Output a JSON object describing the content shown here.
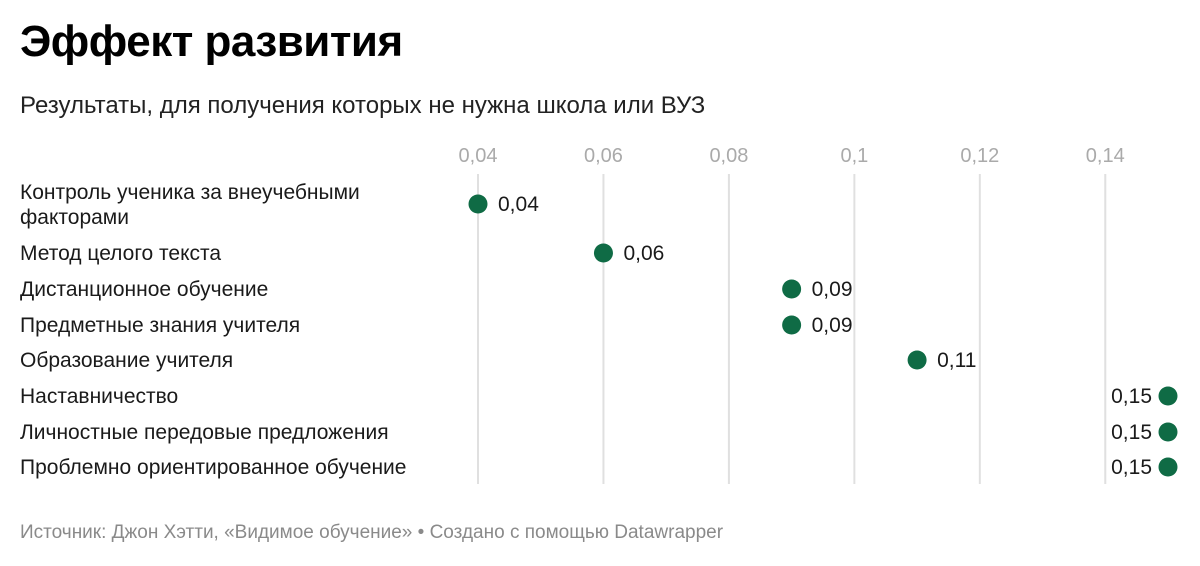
{
  "header": {
    "title": "Эффект развития",
    "subtitle": "Результаты, для получения которых не нужна школа или ВУЗ"
  },
  "footer": {
    "source": "Источник: Джон Хэтти, «Видимое обучение» • Создано с помощью Datawrapper"
  },
  "chart_data": {
    "type": "scatter",
    "title": "Эффект развития",
    "subtitle": "Результаты, для получения которых не нужна школа или ВУЗ",
    "xlim": [
      0.04,
      0.15
    ],
    "x_ticks": [
      0.04,
      0.06,
      0.08,
      0.1,
      0.12,
      0.14
    ],
    "x_tick_labels": [
      "0,04",
      "0,06",
      "0,08",
      "0,1",
      "0,12",
      "0,14"
    ],
    "grid": "vertical",
    "marker_color": "#0f6b45",
    "categories": [
      [
        "Контроль ученика за внеучебными",
        "факторами"
      ],
      [
        "Метод целого текста"
      ],
      [
        "Дистанционное обучение"
      ],
      [
        "Предметные знания учителя"
      ],
      [
        "Образование учителя"
      ],
      [
        "Наставничество"
      ],
      [
        "Личностные передовые предложения"
      ],
      [
        "Проблемно ориентированное обучение"
      ]
    ],
    "values": [
      0.04,
      0.06,
      0.09,
      0.09,
      0.11,
      0.15,
      0.15,
      0.15
    ],
    "value_labels": [
      "0,04",
      "0,06",
      "0,09",
      "0,09",
      "0,11",
      "0,15",
      "0,15",
      "0,15"
    ]
  }
}
